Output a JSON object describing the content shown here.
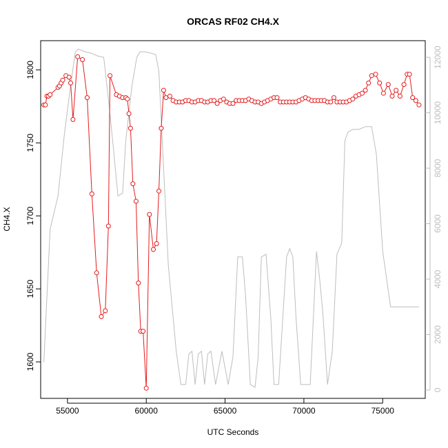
{
  "chart_data": {
    "type": "line",
    "title": "ORCAS RF02 CH4.X",
    "xlabel": "UTC Seconds",
    "ylabel": "CH4.X",
    "xlim": [
      53300,
      77700
    ],
    "ylim": [
      1575,
      1820
    ],
    "y2lim": [
      -300,
      12600
    ],
    "x_ticks": [
      55000,
      60000,
      65000,
      70000,
      75000
    ],
    "x_tick_labels": [
      "55000",
      "60000",
      "65000",
      "70000",
      "75000"
    ],
    "y_ticks": [
      1600,
      1650,
      1700,
      1750,
      1800
    ],
    "y_tick_labels": [
      "1600",
      "1650",
      "1700",
      "1750",
      "1800"
    ],
    "y2_ticks": [
      0,
      2000,
      4000,
      6000,
      8000,
      10000,
      12000
    ],
    "y2_tick_labels": [
      "0",
      "2000",
      "4000",
      "6000",
      "8000",
      "10000",
      "12000"
    ],
    "colors": {
      "ch4": "#e41a1c",
      "altitude": "#bdbdbd"
    },
    "series": [
      {
        "axis": "left",
        "style": "line+points",
        "x": [
          53500,
          53600,
          53700,
          53800,
          53900,
          54400,
          54500,
          54600,
          54700,
          54900,
          55100,
          55200,
          55350,
          55650,
          55950,
          56250,
          56550,
          56850,
          57150,
          57400,
          57600,
          57700,
          58100,
          58300,
          58500,
          58700,
          58800,
          58900,
          59000,
          59150,
          59350,
          59500,
          59650,
          59800,
          60000,
          60200,
          60450,
          60650,
          60800,
          60950,
          61100,
          61250,
          61500,
          61700,
          61900,
          62100,
          62300,
          62500,
          62700,
          62900,
          63100,
          63300,
          63500,
          63700,
          63900,
          64100,
          64300,
          64500,
          64700,
          64900,
          65100,
          65300,
          65500,
          65700,
          65900,
          66100,
          66300,
          66500,
          66700,
          66900,
          67100,
          67300,
          67500,
          67700,
          67900,
          68100,
          68300,
          68500,
          68700,
          68900,
          69100,
          69300,
          69500,
          69700,
          69900,
          70100,
          70300,
          70500,
          70700,
          70900,
          71100,
          71300,
          71500,
          71700,
          71900,
          72100,
          72300,
          72500,
          72700,
          72900,
          73100,
          73300,
          73500,
          73700,
          73900,
          74100,
          74300,
          74550,
          74800,
          75050,
          75350,
          75600,
          75850,
          76100,
          76350,
          76550,
          76700,
          76900,
          77100,
          77300
        ],
        "y": [
          1776,
          1776,
          1782,
          1782,
          1783,
          1788,
          1789,
          1791,
          1793,
          1796,
          1795,
          1791,
          1766,
          1809,
          1807,
          1781,
          1715,
          1661,
          1631,
          1635,
          1693,
          1796,
          1783,
          1782,
          1781,
          1781,
          1780,
          1770,
          1760,
          1722,
          1710,
          1654,
          1621,
          1621,
          1582,
          1701,
          1677,
          1681,
          1717,
          1760,
          1786,
          1781,
          1782,
          1779,
          1778,
          1778,
          1778,
          1779,
          1779,
          1778,
          1778,
          1779,
          1779,
          1778,
          1778,
          1779,
          1779,
          1777,
          1779,
          1780,
          1778,
          1777,
          1777,
          1779,
          1779,
          1779,
          1779,
          1780,
          1779,
          1778,
          1778,
          1777,
          1778,
          1779,
          1780,
          1781,
          1781,
          1778,
          1778,
          1778,
          1778,
          1778,
          1778,
          1779,
          1780,
          1781,
          1780,
          1779,
          1779,
          1779,
          1779,
          1779,
          1778,
          1778,
          1781,
          1778,
          1778,
          1778,
          1778,
          1779,
          1780,
          1782,
          1783,
          1784,
          1786,
          1791,
          1796,
          1797,
          1791,
          1784,
          1790,
          1782,
          1786,
          1782,
          1790,
          1797,
          1797,
          1781,
          1779,
          1776
        ]
      },
      {
        "axis": "right",
        "style": "line",
        "x": [
          53500,
          53900,
          54400,
          54800,
          55200,
          55500,
          55700,
          56100,
          56500,
          56900,
          57300,
          57600,
          57900,
          58200,
          58500,
          58700,
          59100,
          59400,
          59600,
          59900,
          60300,
          60600,
          60800,
          61100,
          61400,
          61900,
          62200,
          62500,
          62700,
          62900,
          63100,
          63300,
          63500,
          63700,
          63900,
          64100,
          64400,
          64800,
          65200,
          65500,
          65800,
          66100,
          66300,
          66600,
          66900,
          67100,
          67300,
          67600,
          67900,
          68100,
          68400,
          68900,
          69100,
          69300,
          69500,
          69800,
          70100,
          70400,
          70800,
          71000,
          71200,
          71500,
          71800,
          72100,
          72400,
          72600,
          72800,
          73100,
          73500,
          73700,
          73900,
          74300,
          74600,
          75000,
          75500,
          76000,
          76400,
          76600,
          76900,
          77300
        ],
        "y": [
          1000,
          5800,
          7000,
          9200,
          11000,
          12200,
          12300,
          12200,
          12150,
          12050,
          12000,
          10500,
          8800,
          7000,
          7100,
          9000,
          11000,
          12000,
          12200,
          12200,
          12150,
          12100,
          11500,
          8000,
          4500,
          1400,
          200,
          200,
          1300,
          1400,
          200,
          1300,
          1400,
          200,
          1300,
          1400,
          200,
          1400,
          200,
          1200,
          4800,
          4800,
          3400,
          200,
          100,
          1200,
          4800,
          4900,
          2600,
          200,
          200,
          4800,
          5100,
          4800,
          2600,
          200,
          200,
          200,
          5000,
          4000,
          2800,
          200,
          1400,
          4900,
          5300,
          9000,
          9300,
          9400,
          9400,
          9450,
          9500,
          9500,
          8500,
          5000,
          3000,
          3000,
          3000,
          3000,
          3000,
          3000
        ]
      }
    ]
  }
}
